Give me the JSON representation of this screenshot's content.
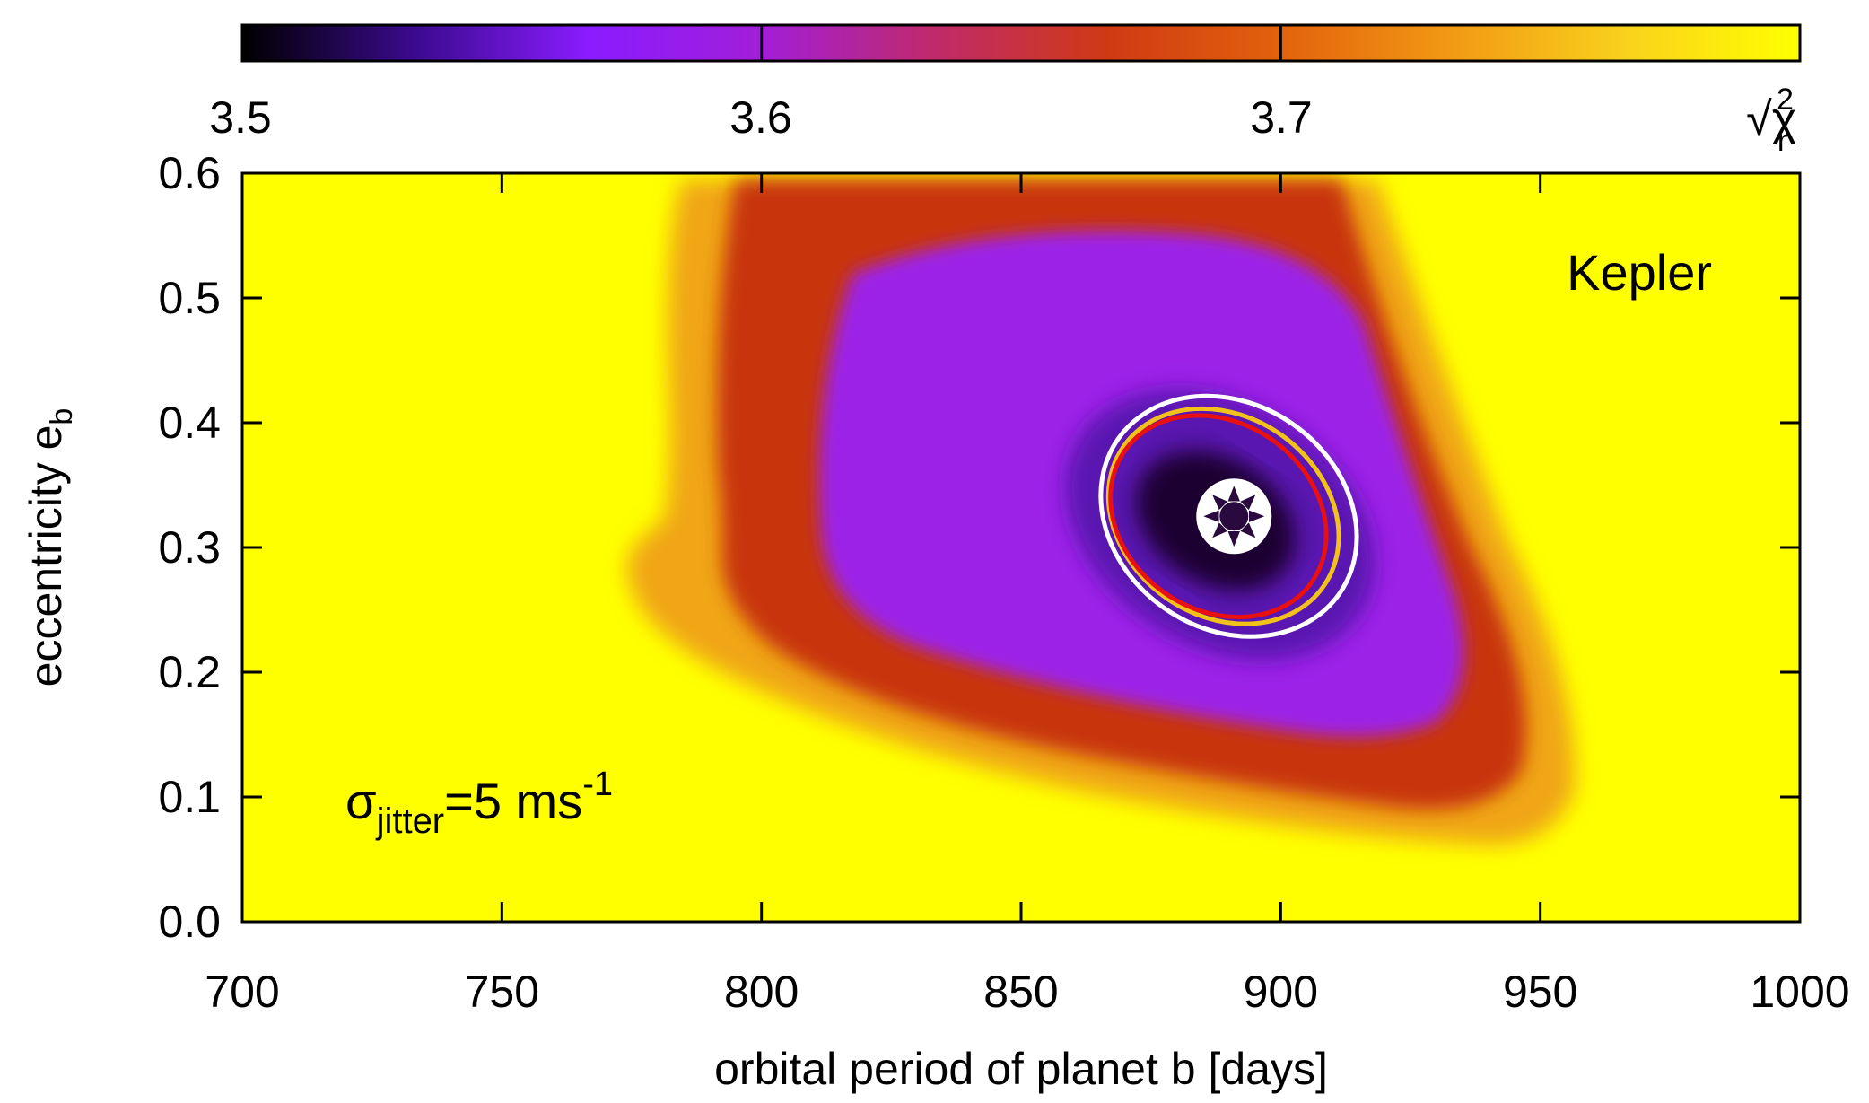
{
  "chart_data": {
    "type": "heatmap",
    "title": "",
    "xlabel": "orbital period of planet b [days]",
    "ylabel": "eccentricity e",
    "ylabel_subscript": "b",
    "xlim": [
      700,
      1000
    ],
    "ylim": [
      0.0,
      0.6
    ],
    "xticks": [
      "700",
      "750",
      "800",
      "850",
      "900",
      "950",
      "1000"
    ],
    "yticks": [
      "0.0",
      "0.1",
      "0.2",
      "0.3",
      "0.4",
      "0.5",
      "0.6"
    ],
    "colorbar": {
      "label": "√χ",
      "label_sub": "r",
      "label_sup": "2",
      "range": [
        3.5,
        3.8
      ],
      "ticks": [
        "3.5",
        "3.6",
        "3.7"
      ],
      "palette": [
        "#000000",
        "#3b0a8f",
        "#8a1cff",
        "#a21ed8",
        "#c02a6a",
        "#cf3a14",
        "#e2620c",
        "#f29a14",
        "#f9d21c",
        "#ffff00"
      ]
    },
    "annotations": {
      "model": "Kepler",
      "jitter_symbol": "σ",
      "jitter_sub": "jitter",
      "jitter_value": "=5 ms",
      "jitter_sup": "-1"
    },
    "best_fit": {
      "period": 891,
      "eccentricity": 0.325
    },
    "contours": [
      {
        "name": "1-sigma",
        "color": "#e81010",
        "center": [
          888,
          0.325
        ],
        "half_width": 22,
        "half_height": 0.075
      },
      {
        "name": "2-sigma",
        "color": "#f2c21a",
        "center": [
          889,
          0.325
        ],
        "half_width": 23.5,
        "half_height": 0.08
      },
      {
        "name": "3-sigma",
        "color": "#ffffff",
        "center": [
          890,
          0.325
        ],
        "half_width": 26,
        "half_height": 0.09
      }
    ]
  }
}
